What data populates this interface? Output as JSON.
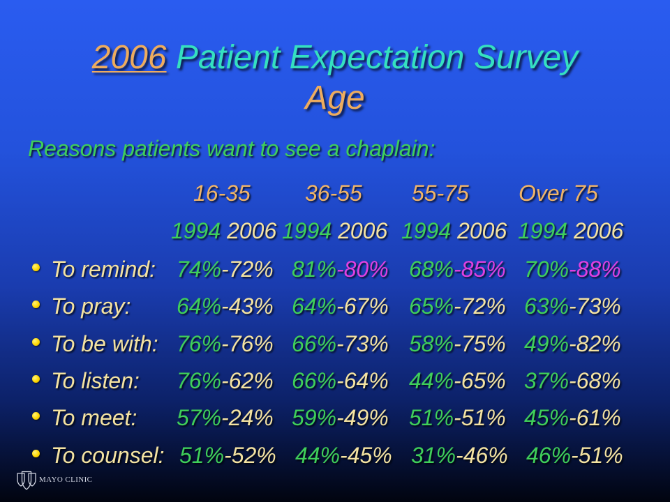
{
  "colors": {
    "bg_top": "#2a5cf0",
    "bg_upper": "#2352dc",
    "bg_mid": "#1a3caf",
    "bg_lower": "#0c2168",
    "bg_bottom": "#01040f",
    "title_main": "#35e0c0",
    "title_accent": "#eeac5e",
    "green": "#3fcf5a",
    "header": "#f0b468",
    "pale": "#f4e3a2",
    "highlight": "#e040e0",
    "bullet": "#ffd800",
    "logo": "#d2d6e2"
  },
  "title": {
    "highlight": "2006",
    "main": "Patient Expectation Survey",
    "line2": "Age"
  },
  "subtitle": "Reasons patients want to see a chaplain:",
  "age_groups": [
    "16-35",
    "36-55",
    "55-75",
    "Over 75"
  ],
  "years": [
    {
      "first": "1994",
      "second": "2006"
    },
    {
      "first": "1994",
      "second": "2006"
    },
    {
      "first": "1994",
      "second": "2006"
    },
    {
      "first": "1994",
      "second": "2006"
    }
  ],
  "separator": "-",
  "rows": [
    {
      "label": "To remind:",
      "values": [
        {
          "first": "74%",
          "second": "72%"
        },
        {
          "first": "81%",
          "second": "80%",
          "highlight": true
        },
        {
          "first": "68%",
          "second": "85%",
          "highlight": true
        },
        {
          "first": "70%",
          "second": "88%",
          "highlight": true
        }
      ]
    },
    {
      "label": "To pray:",
      "values": [
        {
          "first": "64%",
          "second": "43%"
        },
        {
          "first": "64%",
          "second": "67%"
        },
        {
          "first": "65%",
          "second": "72%"
        },
        {
          "first": "63%",
          "second": "73%"
        }
      ]
    },
    {
      "label": "To be with:",
      "values": [
        {
          "first": "76%",
          "second": "76%"
        },
        {
          "first": "66%",
          "second": "73%"
        },
        {
          "first": "58%",
          "second": "75%"
        },
        {
          "first": "49%",
          "second": "82%"
        }
      ]
    },
    {
      "label": "To listen:",
      "values": [
        {
          "first": "76%",
          "second": "62%"
        },
        {
          "first": "66%",
          "second": "64%"
        },
        {
          "first": "44%",
          "second": "65%"
        },
        {
          "first": "37%",
          "second": "68%"
        }
      ]
    },
    {
      "label": "To meet:",
      "values": [
        {
          "first": "57%",
          "second": "24%"
        },
        {
          "first": "59%",
          "second": "49%"
        },
        {
          "first": "51%",
          "second": "51%"
        },
        {
          "first": "45%",
          "second": "61%"
        }
      ]
    },
    {
      "label": "To counsel:",
      "values": [
        {
          "first": "51%",
          "second": "52%"
        },
        {
          "first": "44%",
          "second": "45%"
        },
        {
          "first": "31%",
          "second": "46%"
        },
        {
          "first": "46%",
          "second": "51%"
        }
      ]
    }
  ],
  "logo": {
    "text": "MAYO CLINIC",
    "icon": "mayo-clinic-shield-icon"
  }
}
